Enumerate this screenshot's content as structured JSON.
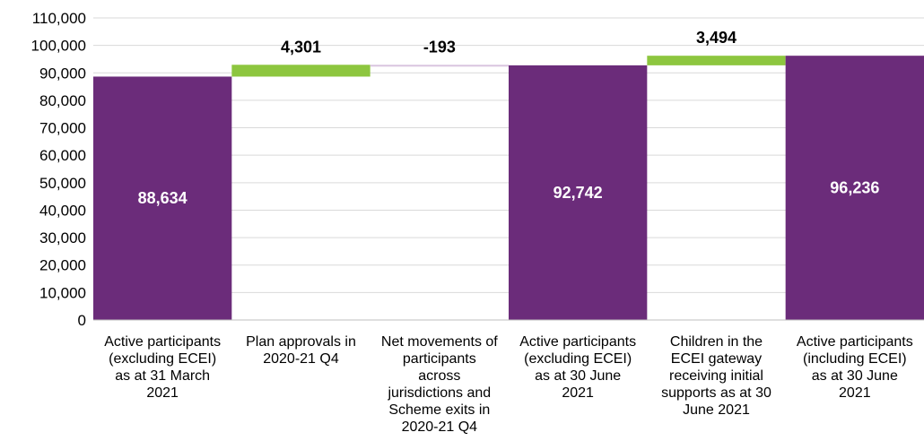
{
  "chart_data": {
    "type": "waterfall",
    "ylim": [
      0,
      110000
    ],
    "y_ticks": [
      0,
      10000,
      20000,
      30000,
      40000,
      50000,
      60000,
      70000,
      80000,
      90000,
      100000,
      110000
    ],
    "y_tick_labels": [
      "0",
      "10,000",
      "20,000",
      "30,000",
      "40,000",
      "50,000",
      "60,000",
      "70,000",
      "80,000",
      "90,000",
      "100,000",
      "110,000"
    ],
    "grid": true,
    "steps": [
      {
        "label": [
          "Active participants",
          "(excluding ECEI)",
          "as at 31 March",
          "2021"
        ],
        "kind": "total",
        "value": 88634,
        "value_label": "88,634"
      },
      {
        "label": [
          "Plan approvals in",
          "2020-21 Q4"
        ],
        "kind": "change",
        "value": 4301,
        "value_label": "4,301"
      },
      {
        "label": [
          "Net movements of",
          "participants",
          "across",
          "jurisdictions and",
          "Scheme exits in",
          "2020-21 Q4"
        ],
        "kind": "change",
        "value": -193,
        "value_label": "-193"
      },
      {
        "label": [
          "Active participants",
          "(excluding ECEI)",
          "as at 30 June",
          "2021"
        ],
        "kind": "total",
        "value": 92742,
        "value_label": "92,742"
      },
      {
        "label": [
          "Children in the",
          "ECEI gateway",
          "receiving initial",
          "supports as at 30",
          "June 2021"
        ],
        "kind": "change",
        "value": 3494,
        "value_label": "3,494"
      },
      {
        "label": [
          "Active participants",
          "(including ECEI)",
          "as at 30 June",
          "2021"
        ],
        "kind": "total",
        "value": 96236,
        "value_label": "96,236"
      }
    ],
    "colors": {
      "total": "#6B2C7A",
      "increase": "#8DC63F",
      "decrease": "#D9C5E0",
      "grid": "#D9D9D9",
      "axis": "#BFBFBF"
    }
  }
}
